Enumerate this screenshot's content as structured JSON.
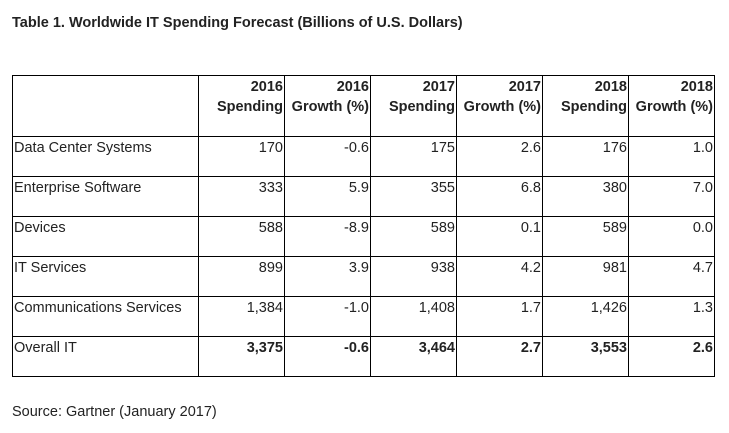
{
  "title": "Table 1. Worldwide IT Spending Forecast (Billions of U.S. Dollars)",
  "columns": [
    {
      "year": "2016",
      "metric": "Spending"
    },
    {
      "year": "2016",
      "metric": "Growth (%)"
    },
    {
      "year": "2017",
      "metric": "Spending"
    },
    {
      "year": "2017",
      "metric": "Growth (%)"
    },
    {
      "year": "2018",
      "metric": "Spending"
    },
    {
      "year": "2018",
      "metric": "Growth (%)"
    }
  ],
  "rows": [
    {
      "label": "Data Center Systems",
      "values": [
        "170",
        "-0.6",
        "175",
        "2.6",
        "176",
        "1.0"
      ]
    },
    {
      "label": "Enterprise Software",
      "values": [
        "333",
        "5.9",
        "355",
        "6.8",
        "380",
        "7.0"
      ]
    },
    {
      "label": "Devices",
      "values": [
        "588",
        "-8.9",
        "589",
        "0.1",
        "589",
        "0.0"
      ]
    },
    {
      "label": "IT Services",
      "values": [
        "899",
        "3.9",
        "938",
        "4.2",
        "981",
        "4.7"
      ]
    },
    {
      "label": "Communications Services",
      "values": [
        "1,384",
        "-1.0",
        "1,408",
        "1.7",
        "1,426",
        "1.3"
      ]
    },
    {
      "label": "Overall IT",
      "values": [
        "3,375",
        "-0.6",
        "3,464",
        "2.7",
        "3,553",
        "2.6"
      ]
    }
  ],
  "source": "Source: Gartner (January 2017)"
}
